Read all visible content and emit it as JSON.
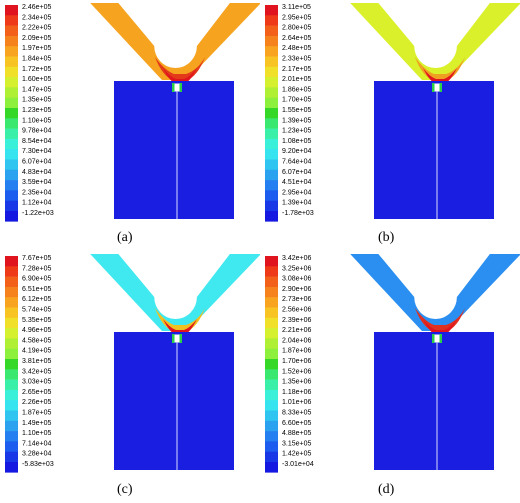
{
  "panels": [
    {
      "caption": "(a)",
      "legend": [
        "2.46e+05",
        "2.34e+05",
        "2.22e+05",
        "2.09e+05",
        "1.97e+05",
        "1.84e+05",
        "1.72e+05",
        "1.60e+05",
        "1.47e+05",
        "1.35e+05",
        "1.23e+05",
        "1.10e+05",
        "9.78e+04",
        "8.54e+04",
        "7.30e+04",
        "6.07e+04",
        "4.83e+04",
        "3.59e+04",
        "2.35e+04",
        "1.12e+04",
        "-1.22e+03"
      ],
      "colors": {
        "plate": "#f6a31f",
        "neck": "#e33a1a",
        "tip": "#e0141e",
        "block": "#1a1ee0"
      }
    },
    {
      "caption": "(b)",
      "legend": [
        "3.11e+05",
        "2.95e+05",
        "2.80e+05",
        "2.64e+05",
        "2.48e+05",
        "2.33e+05",
        "2.17e+05",
        "2.01e+05",
        "1.86e+05",
        "1.70e+05",
        "1.55e+05",
        "1.39e+05",
        "1.23e+05",
        "1.08e+05",
        "9.20e+04",
        "7.64e+04",
        "6.07e+04",
        "4.51e+04",
        "2.95e+04",
        "1.39e+04",
        "-1.78e+03"
      ],
      "colors": {
        "plate": "#d9f02a",
        "neck": "#f0a020",
        "tip": "#e0141e",
        "block": "#1a1ee0"
      }
    },
    {
      "caption": "(c)",
      "legend": [
        "7.67e+05",
        "7.28e+05",
        "6.90e+05",
        "6.51e+05",
        "6.12e+05",
        "5.74e+05",
        "5.35e+05",
        "4.96e+05",
        "4.58e+05",
        "4.19e+05",
        "3.81e+05",
        "3.42e+05",
        "3.03e+05",
        "2.65e+05",
        "2.26e+05",
        "1.87e+05",
        "1.49e+05",
        "1.10e+05",
        "7.14e+04",
        "3.28e+04",
        "-5.83e+03"
      ],
      "colors": {
        "plate": "#40e8f0",
        "neck": "#f0c020",
        "tip": "#e0141e",
        "block": "#1a1ee0"
      }
    },
    {
      "caption": "(d)",
      "legend": [
        "3.42e+06",
        "3.25e+06",
        "3.08e+06",
        "2.90e+06",
        "2.73e+06",
        "2.56e+06",
        "2.39e+06",
        "2.21e+06",
        "2.04e+06",
        "1.87e+06",
        "1.70e+06",
        "1.52e+06",
        "1.35e+06",
        "1.18e+06",
        "1.01e+06",
        "8.33e+05",
        "6.60e+05",
        "4.88e+05",
        "3.15e+05",
        "1.42e+05",
        "-3.01e+04"
      ],
      "colors": {
        "plate": "#2a8ff0",
        "neck": "#e03020",
        "tip": "#e0141e",
        "block": "#1a1ee0"
      }
    }
  ],
  "colorbar": [
    "#e0141e",
    "#ee3a18",
    "#f2601a",
    "#f5821c",
    "#f8a420",
    "#f8c424",
    "#f0e02a",
    "#d4f02e",
    "#b0f034",
    "#8cf03c",
    "#36d828",
    "#3ae870",
    "#3af0a8",
    "#3af0d8",
    "#36e4f0",
    "#30c4f0",
    "#2aa2f0",
    "#2480f0",
    "#1c5cee",
    "#1838e8",
    "#1418e0"
  ]
}
